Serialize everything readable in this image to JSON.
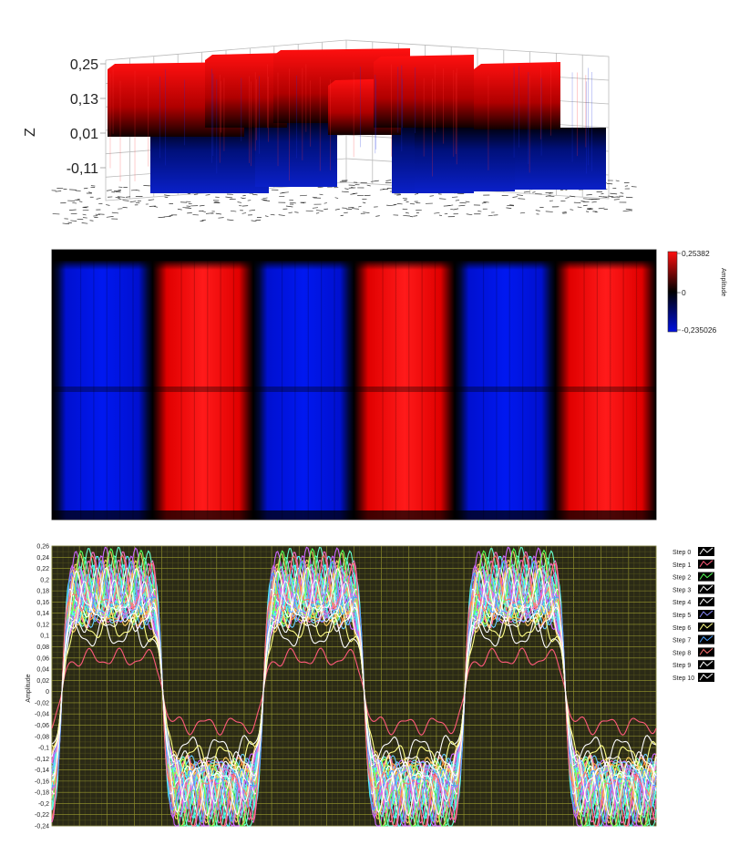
{
  "colors": {
    "red": "#e00000",
    "blue": "#0010c8",
    "black": "#000000",
    "plot_background": "#2b2a16",
    "grid_line": "#8a8a2a"
  },
  "chart_data": [
    {
      "type": "surface",
      "zlabel": "Z",
      "zticks": [
        "0,25",
        "0,13",
        "0,01",
        "-0,11"
      ],
      "zrange": [
        -0.235,
        0.254
      ],
      "color_scale": [
        "#0010c8",
        "#000000",
        "#e00000"
      ]
    },
    {
      "type": "heatmap",
      "colorbar": {
        "label": "Amplitude",
        "max_label": "0,25382",
        "zero_label": "0",
        "min_label": "-0,235026",
        "max": 0.25382,
        "min": -0.235026
      },
      "column_pattern": [
        -1,
        1,
        -1,
        1,
        -1,
        1
      ]
    },
    {
      "type": "line",
      "ylabel": "Amplitude",
      "ylim": [
        -0.24,
        0.26
      ],
      "yticks": [
        "0,26",
        "0,24",
        "0,22",
        "0,2",
        "0,18",
        "0,16",
        "0,14",
        "0,12",
        "0,1",
        "0,08",
        "0,06",
        "0,04",
        "0,02",
        "0",
        "-0,02",
        "-0,04",
        "-0,06",
        "-0,08",
        "-0,1",
        "-0,12",
        "-0,14",
        "-0,16",
        "-0,18",
        "-0,2",
        "-0,22",
        "-0,24"
      ],
      "ytick_values": [
        0.26,
        0.24,
        0.22,
        0.2,
        0.18,
        0.16,
        0.14,
        0.12,
        0.1,
        0.08,
        0.06,
        0.04,
        0.02,
        0,
        -0.02,
        -0.04,
        -0.06,
        -0.08,
        -0.1,
        -0.12,
        -0.14,
        -0.16,
        -0.18,
        -0.2,
        -0.22,
        -0.24
      ],
      "grid": true,
      "legend_position": "right",
      "series": [
        {
          "name": "Step 0",
          "color": "#ffffff",
          "amplitude": 0.2
        },
        {
          "name": "Step 1",
          "color": "#ff5a7a",
          "amplitude": 0.07
        },
        {
          "name": "Step 2",
          "color": "#55ff55",
          "amplitude": 0.23
        },
        {
          "name": "Step 3",
          "color": "#ffffff",
          "amplitude": 0.12
        },
        {
          "name": "Step 4",
          "color": "#ffffff",
          "amplitude": 0.16
        },
        {
          "name": "Step 5",
          "color": "#8a8aff",
          "amplitude": 0.19
        },
        {
          "name": "Step 6",
          "color": "#ffff88",
          "amplitude": 0.14
        },
        {
          "name": "Step 7",
          "color": "#4aa0ff",
          "amplitude": 0.21
        },
        {
          "name": "Step 8",
          "color": "#ff7070",
          "amplitude": 0.22
        },
        {
          "name": "Step 9",
          "color": "#ffffff",
          "amplitude": 0.18
        },
        {
          "name": "Step 10",
          "color": "#ffffff",
          "amplitude": 0.2
        }
      ],
      "extra_series_colors": [
        "#ff66cc",
        "#66ffcc",
        "#ffcc66",
        "#cc66ff",
        "#66ccff",
        "#ff9944",
        "#99ff44",
        "#44ffff"
      ]
    }
  ]
}
